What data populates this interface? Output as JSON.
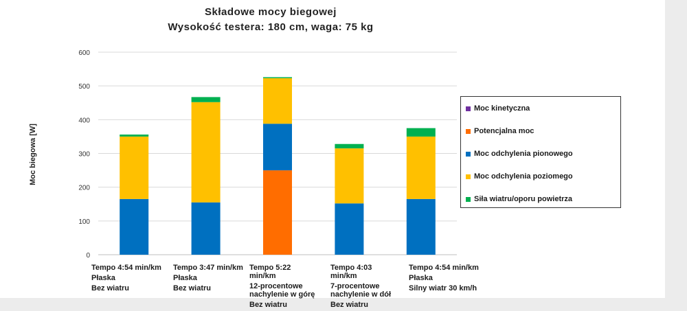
{
  "chart_data": {
    "type": "bar",
    "stacked": true,
    "title": "Składowe mocy biegowej",
    "subtitle": "Wysokość testera: 180 cm, waga: 75 kg",
    "ylabel": "Moc biegowa [W]",
    "xlabel": "",
    "ylim": [
      0,
      600
    ],
    "yticks": [
      0,
      100,
      200,
      300,
      400,
      500,
      600
    ],
    "grid": true,
    "legend_position": "right",
    "categories": [
      [
        "Tempo 4:54 min/km",
        "Płaska",
        "Bez wiatru"
      ],
      [
        "Tempo 3:47 min/km",
        "Płaska",
        "Bez wiatru"
      ],
      [
        "Tempo 5:22 min/km",
        "12-procentowe nachylenie w górę",
        "Bez wiatru"
      ],
      [
        "Tempo 4:03 min/km",
        "7-procentowe nachylenie w dół",
        "Bez wiatru"
      ],
      [
        "Tempo 4:54 min/km",
        "Płaska",
        "Silny wiatr 30 km/h"
      ]
    ],
    "series": [
      {
        "name": "Moc kinetyczna",
        "color": "#7030a0",
        "values": [
          0,
          0,
          0,
          0,
          0
        ]
      },
      {
        "name": "Potencjalna moc",
        "color": "#ff6d00",
        "values": [
          0,
          0,
          250,
          0,
          0
        ]
      },
      {
        "name": "Moc odchylenia pionowego",
        "color": "#0070c0",
        "values": [
          165,
          155,
          138,
          152,
          165
        ]
      },
      {
        "name": "Moc odchylenia poziomego",
        "color": "#ffc000",
        "values": [
          185,
          297,
          135,
          163,
          185
        ]
      },
      {
        "name": "Siła wiatru/oporu powietrza",
        "color": "#00b050",
        "values": [
          6,
          15,
          3,
          13,
          25
        ]
      }
    ]
  }
}
